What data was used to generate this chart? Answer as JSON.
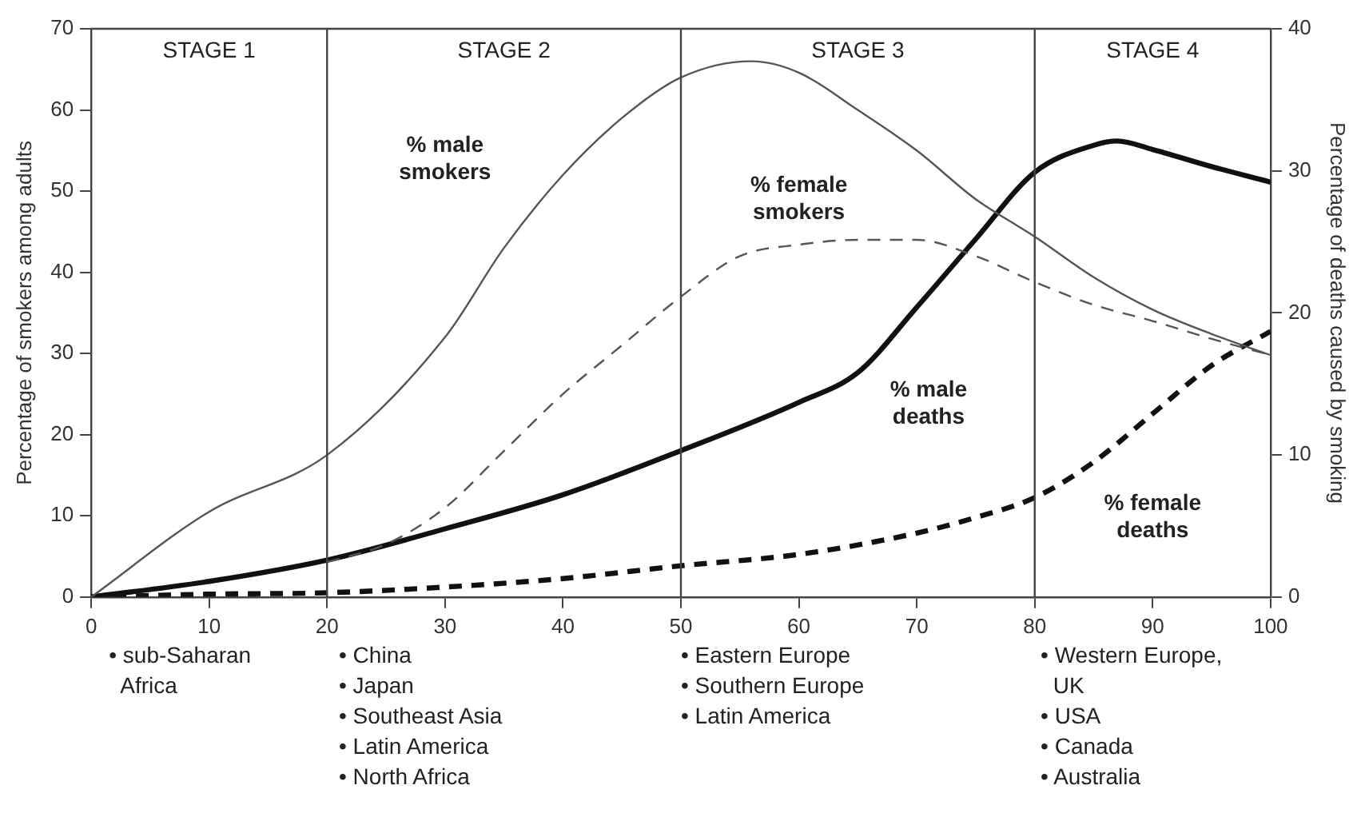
{
  "chart_data": {
    "type": "line",
    "ylabel": "Percentage of smokers among adults",
    "y2label": "Percentage of deaths caused by smoking",
    "xlim": [
      0,
      100
    ],
    "xticks": [
      0,
      10,
      20,
      30,
      40,
      50,
      60,
      70,
      80,
      90,
      100
    ],
    "ylim": [
      0,
      70
    ],
    "yticks": [
      0,
      10,
      20,
      30,
      40,
      50,
      60,
      70
    ],
    "y2lim": [
      0,
      40
    ],
    "y2ticks": [
      0,
      10,
      20,
      30,
      40
    ],
    "grid": false,
    "legend": false,
    "marker": "none",
    "ref_lines": [
      {
        "axis": "x",
        "value": 20
      },
      {
        "axis": "x",
        "value": 50
      },
      {
        "axis": "x",
        "value": 80
      }
    ],
    "series": [
      {
        "color": "#555555",
        "line_style": "solid",
        "x": [
          0,
          10,
          20,
          30,
          35,
          40,
          45,
          50,
          56,
          60,
          65,
          70,
          75,
          80,
          85,
          90,
          95,
          100
        ],
        "values": [
          0,
          10.5,
          17.5,
          32,
          43,
          52,
          59,
          64,
          66,
          64.6,
          60,
          55,
          49,
          44.4,
          39.4,
          35.4,
          32.4,
          29.8
        ]
      },
      {
        "color": "#555555",
        "line_style": "dashed",
        "x": [
          20,
          25,
          30,
          35,
          40,
          45,
          50,
          55,
          60,
          65,
          70,
          75,
          80,
          85,
          90,
          95,
          100
        ],
        "values": [
          4.3,
          6.5,
          11,
          18,
          25,
          31,
          37,
          42,
          43.4,
          44,
          44,
          42,
          38.8,
          36,
          34,
          31.8,
          29.8
        ]
      },
      {
        "color": "#111111",
        "line_style": "solid",
        "axis": "y2",
        "x": [
          0,
          10,
          20,
          30,
          40,
          50,
          60,
          65,
          70,
          75,
          80,
          85,
          87,
          90,
          95,
          100
        ],
        "values": [
          0,
          1.1,
          2.6,
          4.8,
          7.2,
          10.3,
          13.7,
          15.8,
          20.4,
          25.2,
          29.9,
          31.8,
          32.1,
          31.5,
          30.3,
          29.2
        ]
      },
      {
        "color": "#111111",
        "line_style": "dashed",
        "axis": "y2",
        "x": [
          0,
          10,
          20,
          30,
          40,
          50,
          60,
          70,
          75,
          80,
          85,
          90,
          95,
          100
        ],
        "values": [
          0,
          0.2,
          0.3,
          0.7,
          1.3,
          2.2,
          3,
          4.5,
          5.6,
          7,
          9.5,
          12.9,
          16.3,
          18.7
        ]
      }
    ],
    "annotations": [
      "STAGE 1",
      "STAGE 2",
      "STAGE 3",
      "STAGE 4",
      "% male\nsmokers",
      "% female\nsmokers",
      "% male\ndeaths",
      "% female\ndeaths",
      "• sub-Saharan\n  Africa",
      "• China\n• Japan\n• Southeast Asia\n• Latin America\n• North Africa",
      "• Eastern Europe\n• Southern Europe\n• Latin America",
      "• Western Europe,\n  UK\n• USA\n• Canada\n• Australia"
    ]
  }
}
